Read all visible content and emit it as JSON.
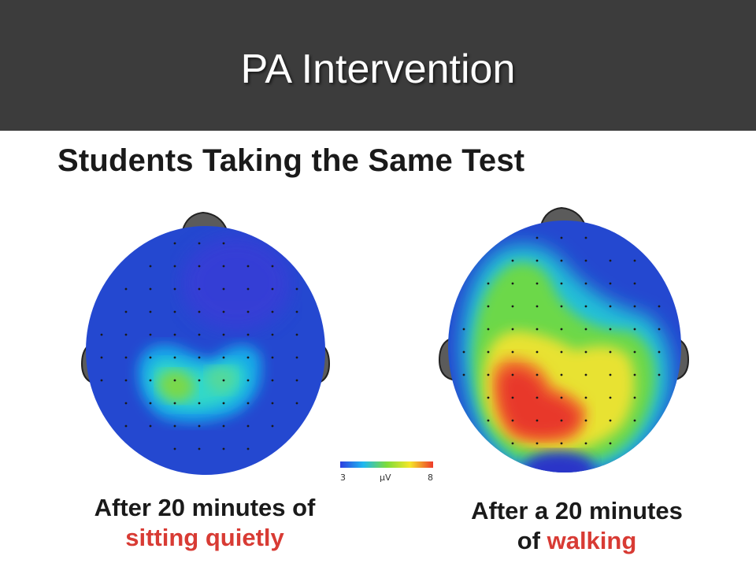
{
  "header": {
    "title": "PA Intervention"
  },
  "slide": {
    "subtitle": "Students Taking the Same Test"
  },
  "left_panel": {
    "caption_line1": "After 20 minutes of",
    "caption_accent": "sitting quietly"
  },
  "right_panel": {
    "caption_line1": "After a 20 minutes",
    "caption_line2_prefix": "of",
    "caption_accent": "walking"
  },
  "color_scale": {
    "min_label": "3",
    "unit_label": "µV",
    "max_label": "8"
  },
  "colors": {
    "header_bg": "#3c3c3c",
    "accent_red": "#d83b34",
    "brain_base_blue": "#2448d0"
  }
}
